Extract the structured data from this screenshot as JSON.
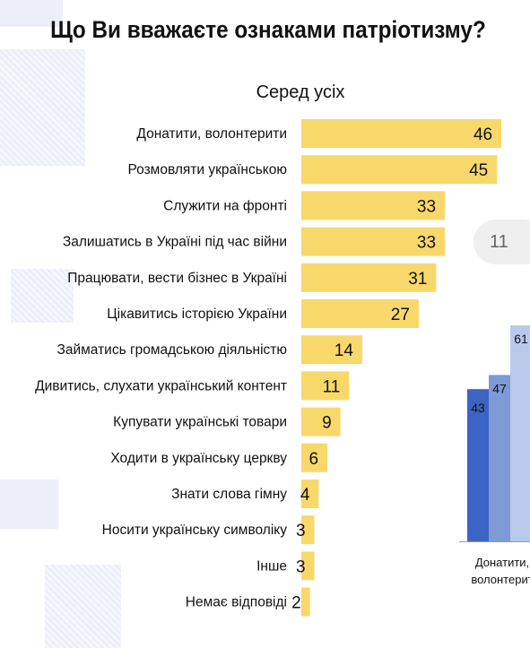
{
  "title": "Що Ви вважаєте ознаками патріотизму?",
  "subtitle": "Серед усіх",
  "chart_data": [
    {
      "type": "bar",
      "orientation": "horizontal",
      "title": "Що Ви вважаєте ознаками патріотизму?",
      "subtitle": "Серед усіх",
      "categories": [
        "Донатити, волонтерити",
        "Розмовляти українською",
        "Служити на фронті",
        "Залишатись в Україні під час війни",
        "Працювати, вести бізнес в Україні",
        "Цікавитись історією України",
        "Займатись громадською діяльністю",
        "Дивитись, слухати український контент",
        "Купувати українські товари",
        "Ходити в українську церкву",
        "Знати слова гімну",
        "Носити українську символіку",
        "Інше",
        "Немає відповіді"
      ],
      "values": [
        46,
        45,
        33,
        33,
        31,
        27,
        14,
        11,
        9,
        6,
        4,
        3,
        3,
        2
      ],
      "bar_color": "#f9d86b",
      "xlim": [
        0,
        100
      ],
      "grid": false,
      "data_labels": true
    },
    {
      "type": "bar",
      "partial": true,
      "category_label_lines": [
        "Донатити,",
        "волонтерит"
      ],
      "values": [
        43,
        47,
        61
      ],
      "colors": [
        "#3b64c4",
        "#7e9bd7",
        "#b9c9ec"
      ],
      "legend_pill": "11"
    }
  ],
  "colors": {
    "main_bar": "#f9d86b",
    "side_bar_1": "#3b64c4",
    "side_bar_2": "#7e9bd7",
    "side_bar_3": "#b9c9ec",
    "background": "#ffffff"
  }
}
